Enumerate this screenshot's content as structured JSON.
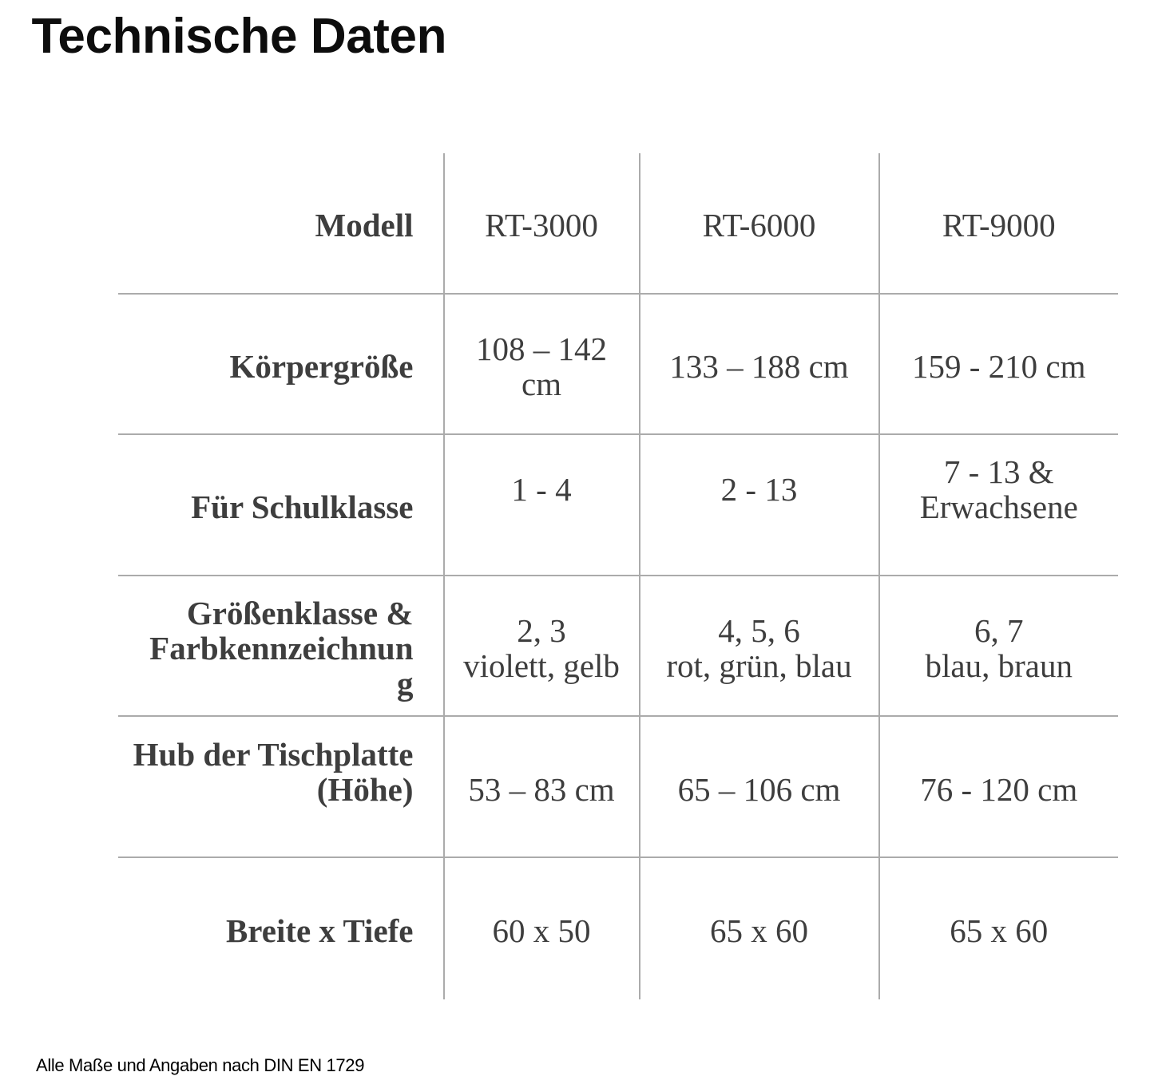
{
  "page": {
    "title": "Technische Daten",
    "footnote": "Alle Maße und Angaben nach DIN EN 1729",
    "background_color": "#ffffff",
    "title_color": "#0d0d0d"
  },
  "table": {
    "grid_line_color": "#ababab",
    "text_color": "#3e3e3e",
    "column_count": 4,
    "row_count": 6,
    "rows": [
      {
        "label_lines": [
          "Modell"
        ],
        "value_lines": [
          [
            "RT-3000"
          ],
          [
            "RT-6000"
          ],
          [
            "RT-9000"
          ]
        ]
      },
      {
        "label_lines": [
          "Körpergröße"
        ],
        "value_lines": [
          [
            "108 – 142",
            "cm"
          ],
          [
            "133 – 188 cm"
          ],
          [
            "159 - 210 cm"
          ]
        ]
      },
      {
        "label_lines": [
          "Für Schulklasse"
        ],
        "value_lines": [
          [
            "1 - 4",
            ""
          ],
          [
            "2 - 13",
            ""
          ],
          [
            "7 - 13 &",
            "Erwachsene",
            ""
          ]
        ]
      },
      {
        "label_lines": [
          "Größenklasse &",
          "Farbkennzeichnun",
          "g"
        ],
        "value_lines": [
          [
            "2, 3",
            "violett, gelb"
          ],
          [
            "4, 5, 6",
            "rot, grün, blau"
          ],
          [
            "6, 7",
            "blau, braun"
          ]
        ]
      },
      {
        "label_lines": [
          "Hub der Tischplatte",
          "(Höhe)",
          ""
        ],
        "value_lines": [
          [
            "53 – 83 cm"
          ],
          [
            "65 – 106 cm"
          ],
          [
            "76 - 120 cm"
          ]
        ]
      },
      {
        "label_lines": [
          "Breite x Tiefe"
        ],
        "value_lines": [
          [
            "60 x 50"
          ],
          [
            "65 x 60"
          ],
          [
            "65 x 60"
          ]
        ]
      }
    ]
  }
}
